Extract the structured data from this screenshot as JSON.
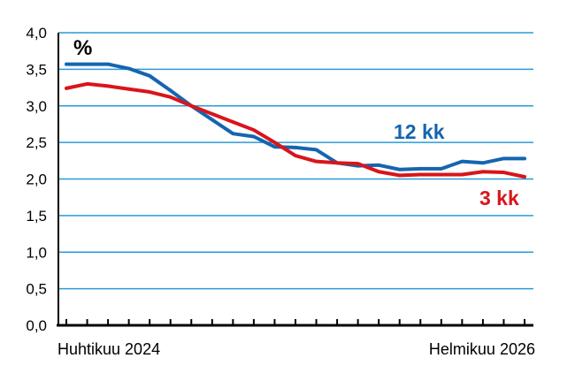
{
  "chart_data": {
    "type": "line",
    "unit_label": "%",
    "x_start_label": "Huhtikuu 2024",
    "x_end_label": "Helmikuu 2026",
    "ylim": [
      0,
      4
    ],
    "yticks": [
      "0,0",
      "0,5",
      "1,0",
      "1,5",
      "2,0",
      "2,5",
      "3,0",
      "3,5",
      "4,0"
    ],
    "ytick_values": [
      0,
      0.5,
      1.0,
      1.5,
      2.0,
      2.5,
      3.0,
      3.5,
      4.0
    ],
    "grid": true,
    "n_points": 23,
    "series": [
      {
        "name": "12 kk",
        "color": "#1565b0",
        "values": [
          3.57,
          3.57,
          3.57,
          3.51,
          3.41,
          3.21,
          3.0,
          2.81,
          2.62,
          2.58,
          2.44,
          2.43,
          2.4,
          2.22,
          2.18,
          2.19,
          2.13,
          2.14,
          2.14,
          2.24,
          2.22,
          2.28,
          2.28
        ]
      },
      {
        "name": "3 kk",
        "color": "#d9151b",
        "values": [
          3.24,
          3.3,
          3.27,
          3.23,
          3.19,
          3.12,
          3.0,
          2.89,
          2.78,
          2.67,
          2.5,
          2.32,
          2.24,
          2.22,
          2.21,
          2.1,
          2.05,
          2.06,
          2.06,
          2.06,
          2.1,
          2.09,
          2.03
        ]
      }
    ]
  }
}
